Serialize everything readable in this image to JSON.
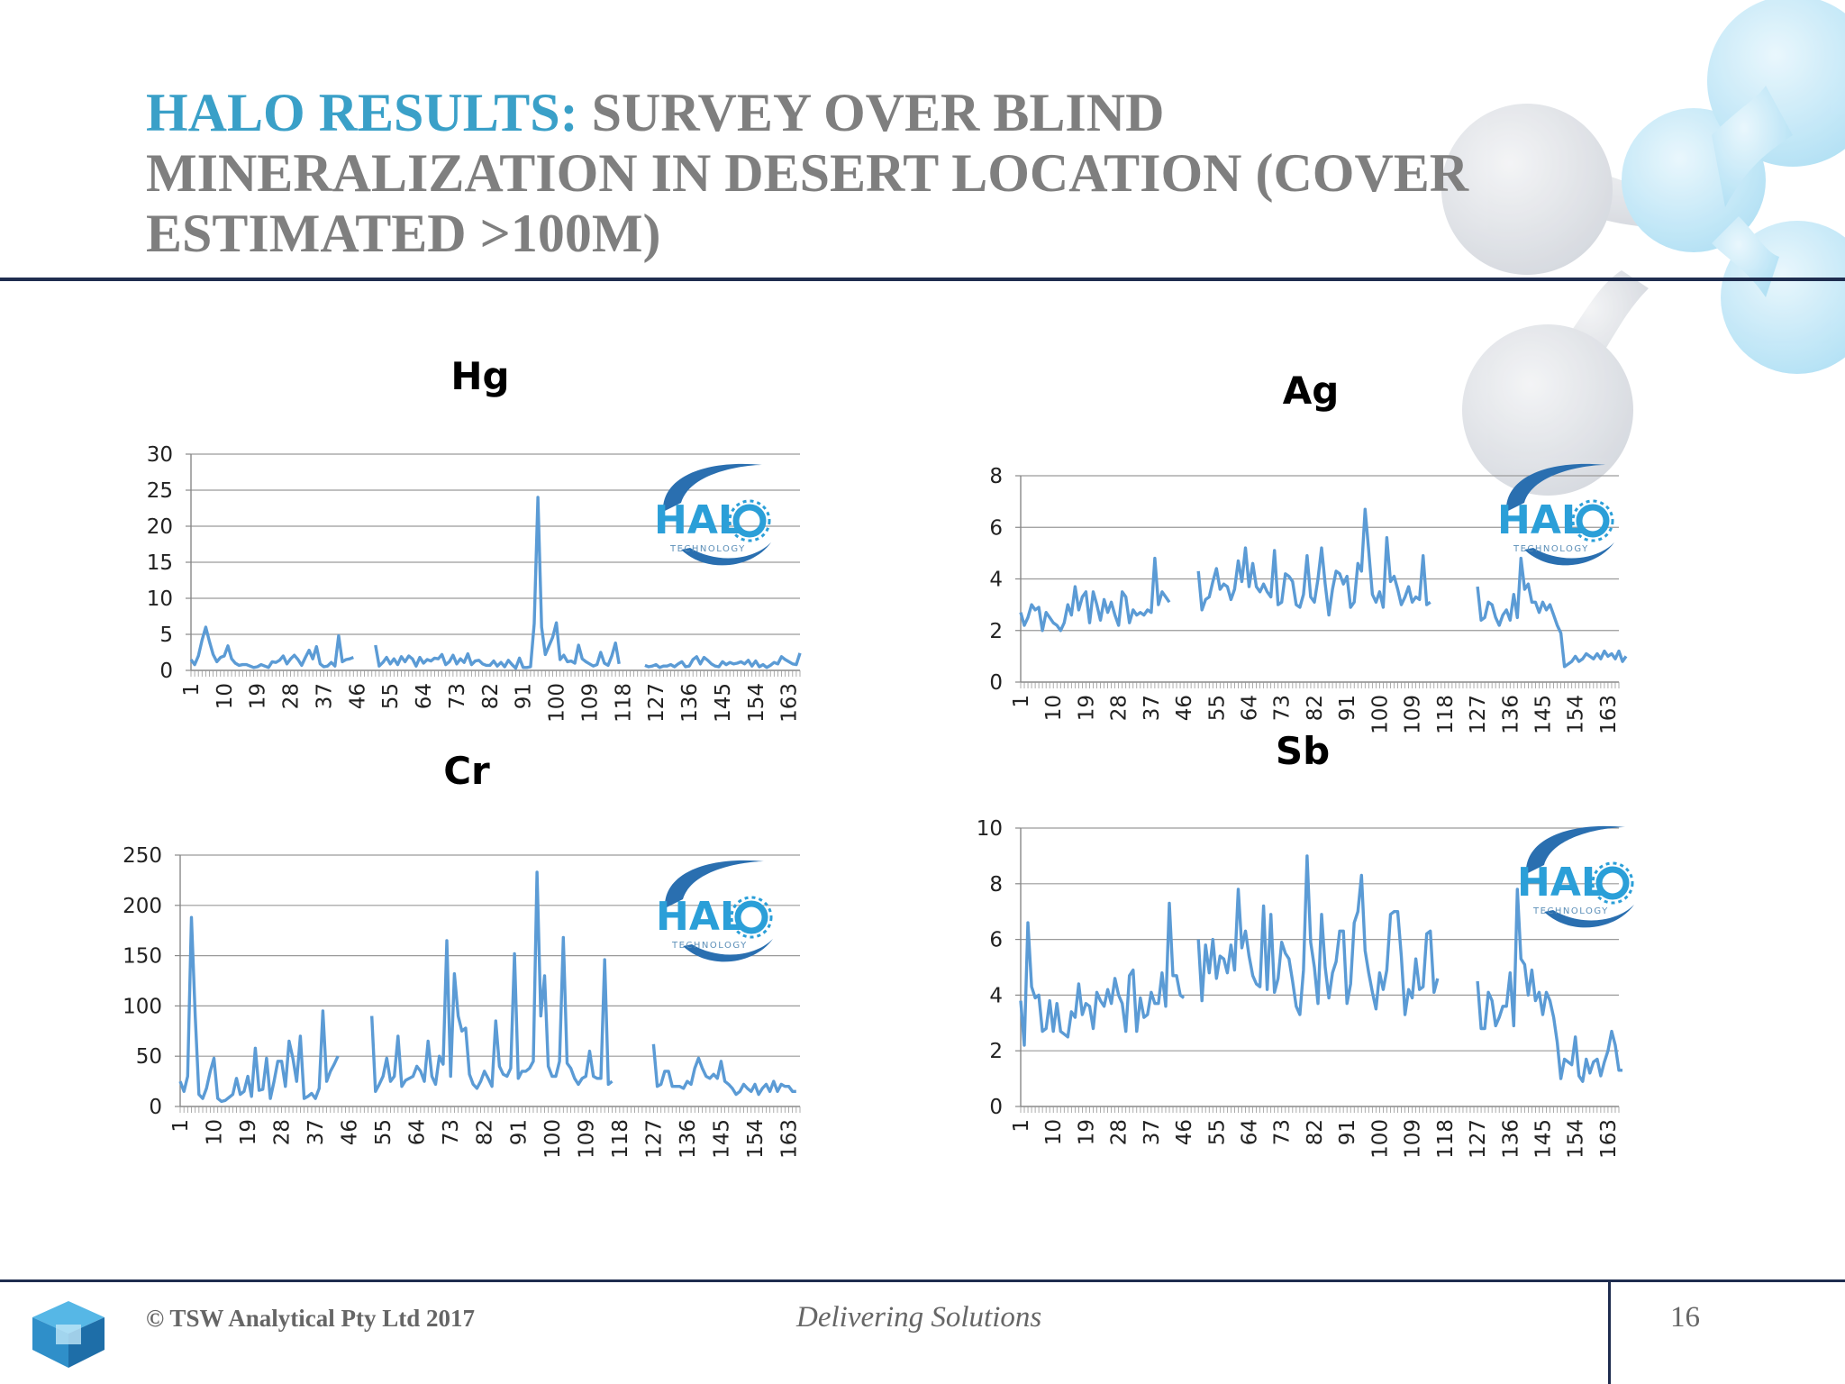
{
  "slide": {
    "title_accent": "HALO RESULTS:",
    "title_rest": " SURVEY OVER BLIND MINERALIZATION IN DESERT LOCATION (COVER ESTIMATED >100M)",
    "footer_copyright": "© TSW Analytical Pty Ltd 2017",
    "footer_tagline": "Delivering Solutions",
    "page_number": "16",
    "logo_text": "HAL",
    "logo_subtext": "TECHNOLOGY"
  },
  "colors": {
    "title_accent": "#3aa0c8",
    "title": "#7f7f7f",
    "series": "#5b9bd5",
    "rule": "#1f2d4f"
  },
  "chart_data": [
    {
      "id": "hg",
      "type": "line",
      "title": "Hg",
      "ylim": [
        0,
        30
      ],
      "yticks": [
        0,
        5,
        10,
        15,
        20,
        25,
        30
      ],
      "xticks": [
        1,
        10,
        19,
        28,
        37,
        46,
        55,
        64,
        73,
        82,
        91,
        100,
        109,
        118,
        127,
        136,
        145,
        154,
        163
      ],
      "xlim": [
        1,
        166
      ],
      "grid": true,
      "legend": "none",
      "segments": [
        {
          "x0": 1,
          "values": [
            1.5,
            0.8,
            2,
            4.2,
            6,
            4,
            2.2,
            1.2,
            1.8,
            2,
            3.4,
            1.6,
            1,
            0.7,
            0.8,
            0.8,
            0.6,
            0.4,
            0.5,
            0.8,
            0.6,
            0.4,
            1.2,
            1.1,
            1.4,
            2,
            0.9,
            1.6,
            2.1,
            1.5,
            0.7,
            1.8,
            2.8,
            1.6,
            3.3,
            0.9,
            0.5,
            0.6,
            1.1,
            0.6,
            4.8,
            1.2,
            1.5,
            1.6,
            1.8
          ]
        },
        {
          "x0": 51,
          "values": [
            3.5,
            0.6,
            1.1,
            1.8,
            0.9,
            1.6,
            0.8,
            1.9,
            1.2,
            2,
            1.6,
            0.6,
            1.8,
            1,
            1.5,
            1.3,
            1.7,
            1.6,
            2.2,
            0.8,
            1.2,
            2.1,
            0.9,
            1.6,
            1.1,
            2.3,
            0.8,
            1.3,
            1.4,
            0.9,
            0.7,
            0.7,
            1.3,
            0.6,
            1.1,
            0.5,
            1.4,
            0.8,
            0.3,
            1.7,
            0.4,
            0.4,
            0.5,
            6.5,
            24,
            6,
            2.2,
            3.4,
            4.6,
            6.6,
            1.5,
            2.1,
            1.2,
            1.3,
            1,
            3.5,
            1.6,
            1.2,
            0.9,
            0.6,
            0.8,
            2.5,
            1,
            0.7,
            2,
            3.8,
            0.9
          ]
        },
        {
          "x0": 124,
          "values": [
            0.7,
            0.5,
            0.6,
            0.8,
            0.4,
            0.6,
            0.6,
            0.8,
            0.5,
            0.9,
            1.2,
            0.5,
            0.6,
            1.5,
            1.9,
            0.9,
            1.8,
            1.4,
            0.9,
            0.6,
            0.5,
            1.2,
            0.8,
            1.1,
            0.9,
            1,
            1.2,
            0.9,
            1.4,
            0.6,
            1.3,
            0.5,
            0.8,
            0.4,
            0.7,
            1.1,
            0.9,
            1.9,
            1.5,
            1.2,
            0.9,
            0.8,
            2.4
          ]
        }
      ]
    },
    {
      "id": "ag",
      "type": "line",
      "title": "Ag",
      "ylim": [
        0,
        8
      ],
      "yticks": [
        0,
        2,
        4,
        6,
        8
      ],
      "xticks": [
        1,
        10,
        19,
        28,
        37,
        46,
        55,
        64,
        73,
        82,
        91,
        100,
        109,
        118,
        127,
        136,
        145,
        154,
        163
      ],
      "xlim": [
        1,
        166
      ],
      "grid": true,
      "legend": "none",
      "segments": [
        {
          "x0": 1,
          "values": [
            2.7,
            2.2,
            2.5,
            3,
            2.8,
            2.9,
            2,
            2.7,
            2.5,
            2.3,
            2.2,
            2,
            2.3,
            3,
            2.6,
            3.7,
            2.8,
            3.3,
            3.5,
            2.3,
            3.5,
            3,
            2.4,
            3.2,
            2.7,
            3.1,
            2.6,
            2.2,
            3.5,
            3.3,
            2.3,
            2.8,
            2.6,
            2.7,
            2.6,
            2.8,
            2.7,
            4.8,
            3,
            3.5,
            3.3,
            3.1
          ]
        },
        {
          "x0": 50,
          "values": [
            4.3,
            2.8,
            3.2,
            3.3,
            3.9,
            4.4,
            3.6,
            3.8,
            3.7,
            3.2,
            3.6,
            4.7,
            3.9,
            5.2,
            3.7,
            4.6,
            3.7,
            3.5,
            3.8,
            3.5,
            3.3,
            5.1,
            3,
            3.1,
            4.2,
            4.1,
            3.9,
            3,
            2.9,
            3.4,
            4.9,
            3.3,
            3.1,
            4,
            5.2,
            3.8,
            2.6,
            3.6,
            4.3,
            4.2,
            3.8,
            4.1,
            2.9,
            3.1,
            4.6,
            4.3,
            6.7,
            5.1,
            3.4,
            3.1,
            3.5,
            2.9,
            5.6,
            3.9,
            4.1,
            3.6,
            3,
            3.3,
            3.7,
            3.1,
            3.3,
            3.2,
            4.9,
            3,
            3.1
          ]
        },
        {
          "x0": 127,
          "values": [
            3.7,
            2.4,
            2.5,
            3.1,
            3,
            2.5,
            2.2,
            2.6,
            2.8,
            2.4,
            3.4,
            2.5,
            4.8,
            3.6,
            3.8,
            3.1,
            3.1,
            2.7,
            3.1,
            2.8,
            3,
            2.6,
            2.2,
            1.9,
            0.6,
            0.7,
            0.8,
            1,
            0.8,
            0.9,
            1.1,
            1,
            0.9,
            1.1,
            0.9,
            1.2,
            1,
            1.1,
            0.9,
            1.2,
            0.8,
            1
          ]
        }
      ]
    },
    {
      "id": "cr",
      "type": "line",
      "title": "Cr",
      "ylim": [
        0,
        250
      ],
      "yticks": [
        0,
        50,
        100,
        150,
        200,
        250
      ],
      "xticks": [
        1,
        10,
        19,
        28,
        37,
        46,
        55,
        64,
        73,
        82,
        91,
        100,
        109,
        118,
        127,
        136,
        145,
        154,
        163
      ],
      "xlim": [
        1,
        166
      ],
      "grid": true,
      "legend": "none",
      "segments": [
        {
          "x0": 1,
          "values": [
            25,
            15,
            30,
            188,
            90,
            12,
            8,
            18,
            35,
            48,
            8,
            5,
            6,
            9,
            12,
            28,
            12,
            15,
            30,
            10,
            58,
            16,
            17,
            48,
            8,
            25,
            45,
            45,
            20,
            65,
            48,
            25,
            70,
            8,
            10,
            13,
            8,
            18,
            95,
            25,
            35,
            42,
            50
          ]
        },
        {
          "x0": 52,
          "values": [
            90,
            15,
            22,
            30,
            48,
            25,
            30,
            70,
            20,
            26,
            28,
            30,
            40,
            35,
            25,
            65,
            30,
            22,
            50,
            42,
            165,
            30,
            132,
            90,
            75,
            78,
            32,
            22,
            18,
            25,
            35,
            28,
            20,
            85,
            40,
            32,
            30,
            38,
            152,
            28,
            35,
            35,
            38,
            45,
            233,
            90,
            130,
            40,
            30,
            30,
            45,
            168,
            43,
            38,
            28,
            22,
            28,
            30,
            55,
            30,
            28,
            28,
            146,
            22,
            25
          ]
        },
        {
          "x0": 127,
          "values": [
            62,
            20,
            22,
            35,
            35,
            20,
            20,
            20,
            18,
            25,
            22,
            38,
            48,
            38,
            30,
            28,
            32,
            28,
            45,
            25,
            22,
            18,
            12,
            15,
            22,
            18,
            15,
            22,
            12,
            18,
            22,
            15,
            25,
            15,
            22,
            20,
            20,
            15,
            15
          ]
        }
      ]
    },
    {
      "id": "sb",
      "type": "line",
      "title": "Sb",
      "ylim": [
        0,
        10
      ],
      "yticks": [
        0,
        2,
        4,
        6,
        8,
        10
      ],
      "xticks": [
        1,
        10,
        19,
        28,
        37,
        46,
        55,
        64,
        73,
        82,
        91,
        100,
        109,
        118,
        127,
        136,
        145,
        154,
        163
      ],
      "xlim": [
        1,
        166
      ],
      "grid": true,
      "legend": "none",
      "segments": [
        {
          "x0": 1,
          "values": [
            3.8,
            2.2,
            6.6,
            4.3,
            3.9,
            4,
            2.7,
            2.8,
            3.8,
            2.7,
            3.7,
            2.7,
            2.6,
            2.5,
            3.4,
            3.2,
            4.4,
            3.3,
            3.7,
            3.6,
            2.8,
            4.1,
            3.8,
            3.6,
            4.2,
            3.7,
            4.6,
            4,
            3.7,
            2.7,
            4.7,
            4.9,
            2.7,
            3.9,
            3.2,
            3.3,
            4.1,
            3.7,
            3.7,
            4.8,
            3.6,
            7.3,
            4.7,
            4.7,
            4,
            3.9
          ]
        },
        {
          "x0": 50,
          "values": [
            6,
            3.8,
            5.8,
            4.8,
            6,
            4.6,
            5.4,
            5.3,
            4.8,
            5.8,
            4.9,
            7.8,
            5.7,
            6.3,
            5.4,
            4.7,
            4.4,
            4.3,
            7.2,
            4.2,
            6.9,
            4.1,
            4.6,
            5.9,
            5.5,
            5.3,
            4.5,
            3.6,
            3.3,
            4.9,
            9,
            5.9,
            5,
            3.7,
            6.9,
            5,
            3.9,
            4.8,
            5.2,
            6.3,
            6.3,
            3.7,
            4.4,
            6.6,
            7,
            8.3,
            5.6,
            4.8,
            4.1,
            3.5,
            4.8,
            4.2,
            4.9,
            6.9,
            7,
            7,
            5.4,
            3.3,
            4.2,
            3.9,
            5.3,
            4.2,
            4.3,
            6.2,
            6.3,
            4.1,
            4.6
          ]
        },
        {
          "x0": 127,
          "values": [
            4.5,
            2.8,
            2.8,
            4.1,
            3.8,
            2.9,
            3.2,
            3.6,
            3.6,
            4.8,
            2.9,
            7.8,
            5.3,
            5.1,
            4,
            4.9,
            3.8,
            4.1,
            3.3,
            4.1,
            3.8,
            3.2,
            2.3,
            1,
            1.7,
            1.6,
            1.5,
            2.5,
            1.1,
            0.9,
            1.7,
            1.2,
            1.6,
            1.7,
            1.1,
            1.6,
            2,
            2.7,
            2.2,
            1.3,
            1.3
          ]
        }
      ]
    }
  ]
}
